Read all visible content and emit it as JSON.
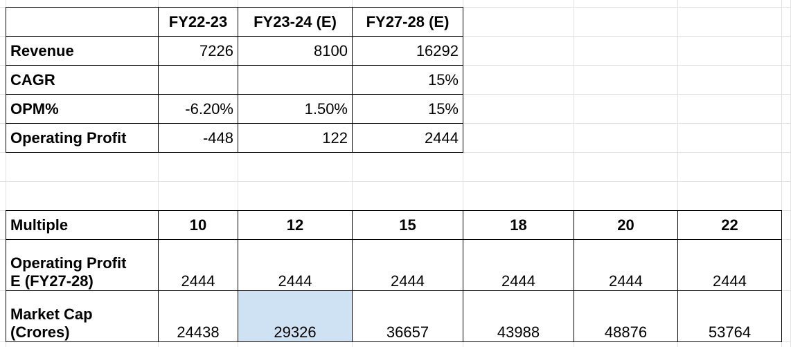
{
  "top_table": {
    "columns": [
      "FY22-23",
      "FY23-24 (E)",
      "FY27-28 (E)"
    ],
    "rows": [
      {
        "label": "Revenue",
        "cells": [
          "7226",
          "8100",
          "16292"
        ]
      },
      {
        "label": "CAGR",
        "cells": [
          null,
          null,
          "15%"
        ]
      },
      {
        "label": "OPM%",
        "cells": [
          "-6.20%",
          "1.50%",
          "15%"
        ]
      },
      {
        "label": "Operating Profit",
        "cells": [
          "-448",
          "122",
          "2444"
        ]
      }
    ]
  },
  "bottom_table": {
    "rows": [
      {
        "label": [
          "Multiple"
        ],
        "cells": [
          "10",
          "12",
          "15",
          "18",
          "20",
          "22"
        ]
      },
      {
        "label": [
          "Operating Profit",
          "E (FY27-28)"
        ],
        "cells": [
          "2444",
          "2444",
          "2444",
          "2444",
          "2444",
          "2444"
        ]
      },
      {
        "label": [
          "Market Cap",
          "(Crores)"
        ],
        "cells": [
          "24438",
          "29326",
          "36657",
          "43988",
          "48876",
          "53764"
        ]
      }
    ],
    "highlighted_cell": {
      "row": 2,
      "column": 1,
      "color": "#cfe2f3"
    }
  }
}
